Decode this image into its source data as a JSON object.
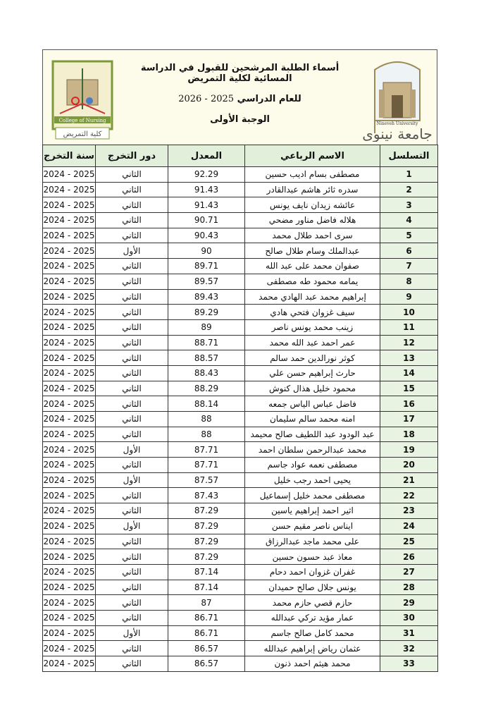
{
  "header": {
    "title": "أسماء الطلبة المرشحين للقبول في الدراسة المسائية لكلية التمريض",
    "year_label": "للعام الدراسي",
    "year_value": "2025 - 2026",
    "batch": "الوجبة الأولى"
  },
  "logos": {
    "university": {
      "text_top": "إقرأ وربك الأكرم",
      "text_en": "Nineveh University",
      "text_ar": "جامعة نينوى"
    },
    "college": {
      "text_en": "College of Nursing",
      "text_ar": "كلية التمريض"
    }
  },
  "colors": {
    "header_bg": "#e2efda",
    "page_bg": "#fdfbe9"
  },
  "table": {
    "columns": [
      "التسلسل",
      "الاسم الرباعي",
      "المعدل",
      "دور التخرج",
      "سنة التخرج"
    ],
    "rows": [
      [
        "1",
        "مصطفى بسام اديب حسين",
        "92.29",
        "الثاني",
        "2025 - 2024"
      ],
      [
        "2",
        "سدره ثائر هاشم عبدالقادر",
        "91.43",
        "الثاني",
        "2025 - 2024"
      ],
      [
        "3",
        "عائشه زيدان نايف يونس",
        "91.43",
        "الثاني",
        "2025 - 2024"
      ],
      [
        "4",
        "هلاله فاضل مناور مضحي",
        "90.71",
        "الثاني",
        "2025 - 2024"
      ],
      [
        "5",
        "سرى احمد طلال محمد",
        "90.43",
        "الثاني",
        "2025 - 2024"
      ],
      [
        "6",
        "عبدالملك وسام طلال صالح",
        "90",
        "الأول",
        "2025 - 2024"
      ],
      [
        "7",
        "صفوان محمد على عبد الله",
        "89.71",
        "الثاني",
        "2025 - 2024"
      ],
      [
        "8",
        "يمامه محمود طه مصطفى",
        "89.57",
        "الثاني",
        "2025 - 2024"
      ],
      [
        "9",
        "إبراهيم محمد عبد الهادي محمد",
        "89.43",
        "الثاني",
        "2025 - 2024"
      ],
      [
        "10",
        "سيف غزوان فتحي هادي",
        "89.29",
        "الثاني",
        "2025 - 2024"
      ],
      [
        "11",
        "زينب محمد يونس ناصر",
        "89",
        "الثاني",
        "2025 - 2024"
      ],
      [
        "12",
        "عمر احمد عبد الله محمد",
        "88.71",
        "الثاني",
        "2025 - 2024"
      ],
      [
        "13",
        "كوثر نورالدين حمد سالم",
        "88.57",
        "الثاني",
        "2025 - 2024"
      ],
      [
        "14",
        "حارث إبراهيم حسن علي",
        "88.43",
        "الثاني",
        "2025 - 2024"
      ],
      [
        "15",
        "محمود خليل هذال كنوش",
        "88.29",
        "الثاني",
        "2025 - 2024"
      ],
      [
        "16",
        "فاضل عباس الياس جمعه",
        "88.14",
        "الثاني",
        "2025 - 2024"
      ],
      [
        "17",
        "امنه محمد سالم سليمان",
        "88",
        "الثاني",
        "2025 - 2024"
      ],
      [
        "18",
        "عبد الودود عبد اللطيف صالح محيمد",
        "88",
        "الثاني",
        "2025 - 2024"
      ],
      [
        "19",
        "محمد عبدالرحمن سلطان احمد",
        "87.71",
        "الأول",
        "2025 - 2024"
      ],
      [
        "20",
        "مصطفى نعمه عواد جاسم",
        "87.71",
        "الثاني",
        "2025 - 2024"
      ],
      [
        "21",
        "يحيى احمد رجب خليل",
        "87.57",
        "الأول",
        "2025 - 2024"
      ],
      [
        "22",
        "مصطفى محمد خليل إسماعيل",
        "87.43",
        "الثاني",
        "2025 - 2024"
      ],
      [
        "23",
        "اثير احمد إبراهيم ياسين",
        "87.29",
        "الثاني",
        "2025 - 2024"
      ],
      [
        "24",
        "ايناس ناصر مقيم حسن",
        "87.29",
        "الأول",
        "2025 - 2024"
      ],
      [
        "25",
        "على محمد ماجد عبدالرزاق",
        "87.29",
        "الثاني",
        "2025 - 2024"
      ],
      [
        "26",
        "معاذ عبد حسون حسين",
        "87.29",
        "الثاني",
        "2025 - 2024"
      ],
      [
        "27",
        "غفران غزوان احمد دحام",
        "87.14",
        "الثاني",
        "2025 - 2024"
      ],
      [
        "28",
        "يونس جلال صالح حميدان",
        "87.14",
        "الثاني",
        "2025 - 2024"
      ],
      [
        "29",
        "حازم قصي حازم محمد",
        "87",
        "الثاني",
        "2025 - 2024"
      ],
      [
        "30",
        "عمار مؤيد تركي عبدالله",
        "86.71",
        "الثاني",
        "2025 - 2024"
      ],
      [
        "31",
        "محمد كامل صالح جاسم",
        "86.71",
        "الأول",
        "2025 - 2024"
      ],
      [
        "32",
        "عثمان رياض إبراهيم عبدالله",
        "86.57",
        "الثاني",
        "2025 - 2024"
      ],
      [
        "33",
        "محمد هيثم احمد ذنون",
        "86.57",
        "الثاني",
        "2025 - 2024"
      ]
    ]
  }
}
